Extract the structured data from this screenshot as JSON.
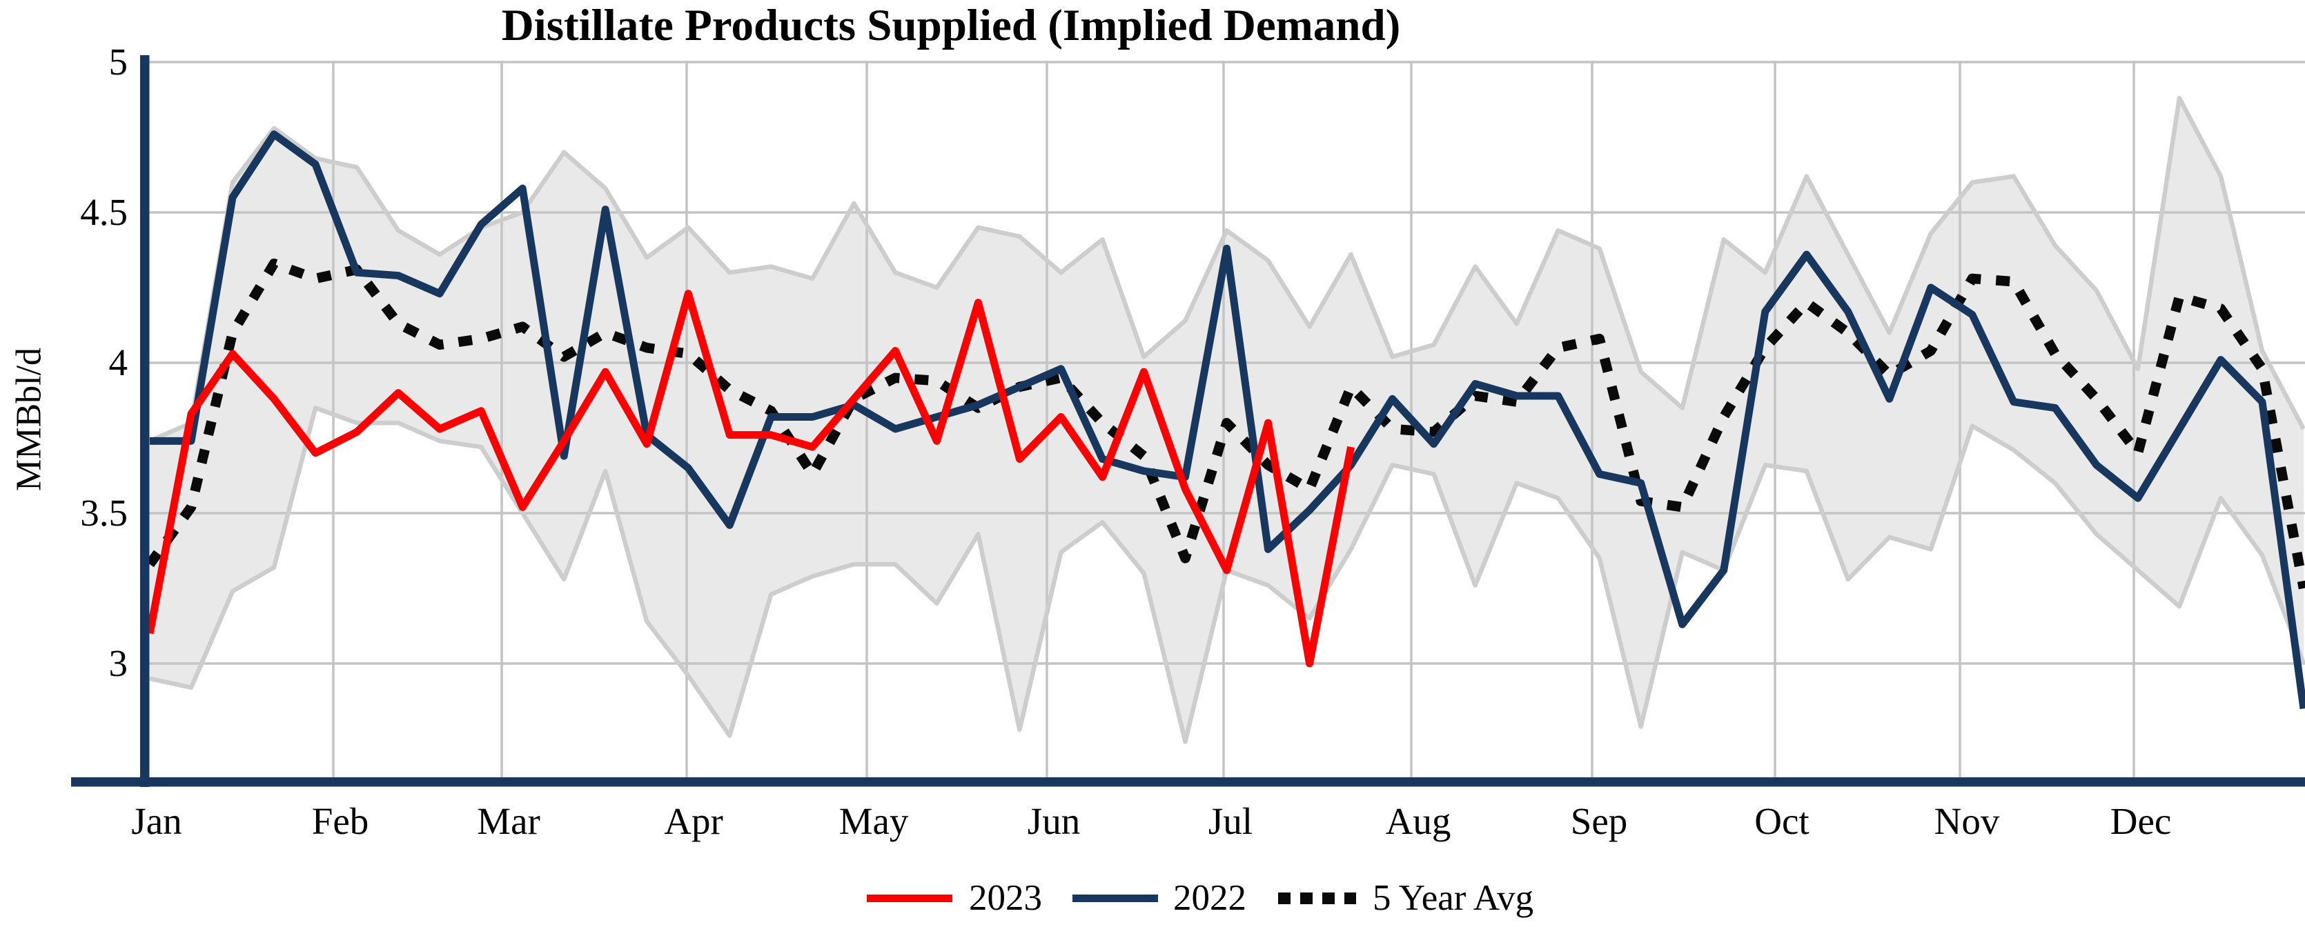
{
  "title": "Distillate Products Supplied (Implied Demand)",
  "y_axis": {
    "label": "MMBbl/d",
    "tick_labels": [
      "5",
      "4.5",
      "4",
      "3.5",
      "3"
    ],
    "tick_values": [
      5,
      4.5,
      4,
      3.5,
      3
    ]
  },
  "x_axis": {
    "months": [
      "Jan",
      "Feb",
      "Mar",
      "Apr",
      "May",
      "Jun",
      "Jul",
      "Aug",
      "Sep",
      "Oct",
      "Nov",
      "Dec"
    ]
  },
  "legend": {
    "items": [
      {
        "label": "2023",
        "color": "#ff0000",
        "style": "solid"
      },
      {
        "label": "2022",
        "color": "#17375e",
        "style": "solid"
      },
      {
        "label": "5 Year Avg",
        "color": "#0a0a0a",
        "style": "dotted"
      }
    ]
  },
  "colors": {
    "red_2023": "#ff0000",
    "navy_2022": "#17375e",
    "avg_dotted": "#0a0a0a",
    "band_fill": "#e9e9e9",
    "band_edge": "#cdcdcd",
    "gridline": "#c4c4c4",
    "axis": "#17375e",
    "background": "#ffffff"
  },
  "chart_data": {
    "type": "line",
    "title": "Distillate Products Supplied (Implied Demand)",
    "xlabel": "",
    "ylabel": "MMBbl/d",
    "x_unit": "week_of_year",
    "ylim": [
      2.6,
      5.0
    ],
    "yticks": [
      3,
      3.5,
      4,
      4.5,
      5
    ],
    "grid": true,
    "legend_position": "bottom",
    "series": [
      {
        "name": "2023",
        "style": "solid",
        "color": "#ff0000",
        "values": [
          3.1,
          3.83,
          4.03,
          3.88,
          3.7,
          3.77,
          3.9,
          3.78,
          3.84,
          3.52,
          3.74,
          3.97,
          3.73,
          4.23,
          3.76,
          3.76,
          3.72,
          3.88,
          4.04,
          3.74,
          4.2,
          3.68,
          3.82,
          3.62,
          3.97,
          3.58,
          3.31,
          3.8,
          3.0,
          3.72
        ]
      },
      {
        "name": "2022",
        "style": "solid",
        "color": "#17375e",
        "values": [
          3.74,
          3.74,
          4.55,
          4.76,
          4.66,
          4.3,
          4.29,
          4.23,
          4.46,
          4.58,
          3.69,
          4.51,
          3.76,
          3.65,
          3.46,
          3.82,
          3.82,
          3.86,
          3.78,
          3.82,
          3.86,
          3.92,
          3.98,
          3.68,
          3.64,
          3.62,
          4.38,
          3.38,
          3.51,
          3.66,
          3.88,
          3.73,
          3.93,
          3.89,
          3.89,
          3.63,
          3.6,
          3.13,
          3.31,
          4.17,
          4.36,
          4.17,
          3.88,
          4.25,
          4.16,
          3.87,
          3.85,
          3.66,
          3.55,
          3.78,
          4.01,
          3.87,
          2.85
        ]
      },
      {
        "name": "5 Year Avg",
        "style": "dotted",
        "color": "#0a0a0a",
        "values": [
          3.33,
          3.52,
          4.1,
          4.33,
          4.28,
          4.31,
          4.13,
          4.06,
          4.08,
          4.12,
          4.02,
          4.1,
          4.05,
          4.03,
          3.91,
          3.84,
          3.63,
          3.88,
          3.95,
          3.94,
          3.85,
          3.92,
          3.95,
          3.8,
          3.69,
          3.35,
          3.8,
          3.66,
          3.58,
          3.92,
          3.78,
          3.77,
          3.89,
          3.87,
          4.05,
          4.08,
          3.54,
          3.52,
          3.82,
          4.05,
          4.2,
          4.1,
          3.96,
          4.04,
          4.28,
          4.27,
          4.03,
          3.88,
          3.7,
          4.22,
          4.18,
          3.98,
          3.25
        ]
      }
    ],
    "band": {
      "name": "5 Year Range",
      "fill": "#e9e9e9",
      "min": [
        2.95,
        2.92,
        3.24,
        3.32,
        3.85,
        3.8,
        3.8,
        3.74,
        3.72,
        3.5,
        3.28,
        3.64,
        3.14,
        2.96,
        2.76,
        3.23,
        3.29,
        3.33,
        3.33,
        3.2,
        3.43,
        2.78,
        3.37,
        3.47,
        3.3,
        2.74,
        3.31,
        3.26,
        3.15,
        3.38,
        3.66,
        3.63,
        3.26,
        3.6,
        3.55,
        3.35,
        2.79,
        3.37,
        3.31,
        3.66,
        3.64,
        3.28,
        3.42,
        3.38,
        3.79,
        3.71,
        3.6,
        3.43,
        3.31,
        3.19,
        3.55,
        3.36,
        3.0
      ],
      "max": [
        3.74,
        3.8,
        4.6,
        4.78,
        4.68,
        4.65,
        4.44,
        4.36,
        4.45,
        4.5,
        4.7,
        4.58,
        4.35,
        4.45,
        4.3,
        4.32,
        4.28,
        4.53,
        4.3,
        4.25,
        4.45,
        4.42,
        4.3,
        4.41,
        4.02,
        4.14,
        4.44,
        4.34,
        4.12,
        4.36,
        4.02,
        4.06,
        4.32,
        4.13,
        4.44,
        4.38,
        3.97,
        3.85,
        4.41,
        4.3,
        4.62,
        4.36,
        4.1,
        4.43,
        4.6,
        4.62,
        4.39,
        4.24,
        3.98,
        4.88,
        4.62,
        4.04,
        3.78
      ]
    }
  }
}
